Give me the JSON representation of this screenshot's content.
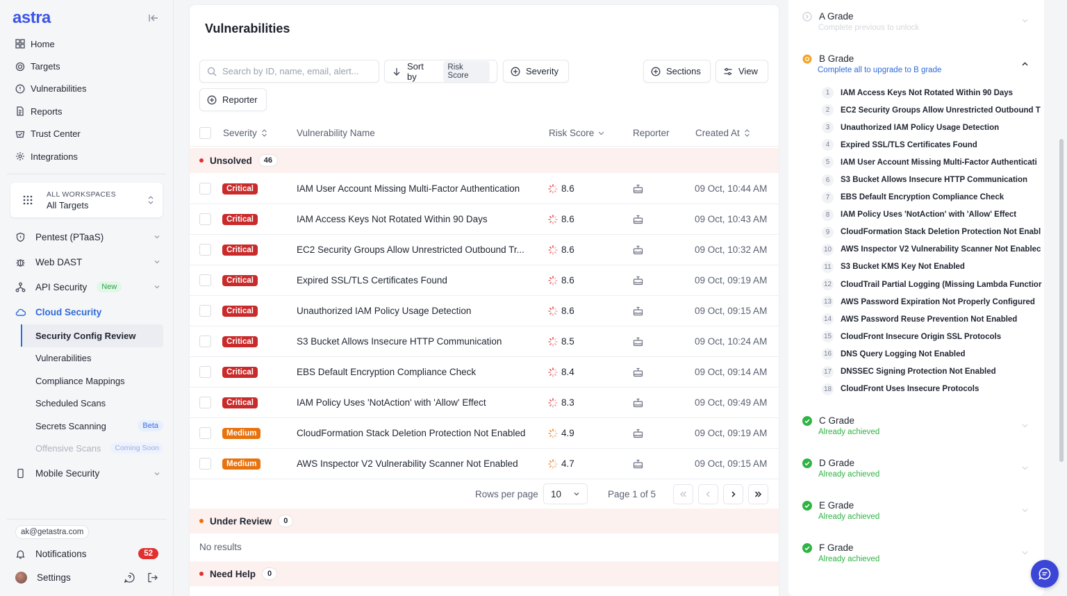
{
  "app": {
    "logo": "astra"
  },
  "nav": [
    {
      "label": "Home",
      "icon": "grid-icon"
    },
    {
      "label": "Targets",
      "icon": "target-icon"
    },
    {
      "label": "Vulnerabilities",
      "icon": "alert-circle-icon"
    },
    {
      "label": "Reports",
      "icon": "document-icon"
    },
    {
      "label": "Trust Center",
      "icon": "shield-check-icon"
    },
    {
      "label": "Integrations",
      "icon": "integrations-icon"
    }
  ],
  "workspace": {
    "label": "ALL WORKSPACES",
    "value": "All Targets"
  },
  "groups": {
    "pentest": "Pentest (PTaaS)",
    "dast": "Web DAST",
    "api": "API Security",
    "api_badge": "New",
    "cloud": "Cloud Security",
    "mobile": "Mobile Security"
  },
  "cloud_sub": {
    "config": "Security Config Review",
    "vulns": "Vulnerabilities",
    "compliance": "Compliance Mappings",
    "scheduled": "Scheduled Scans",
    "secrets": "Secrets Scanning",
    "secrets_badge": "Beta",
    "offensive": "Offensive Scans",
    "offensive_badge": "Coming Soon"
  },
  "account": {
    "email": "ak@getastra.com",
    "notifications": "Notifications",
    "notif_count": "52",
    "settings": "Settings"
  },
  "main": {
    "title": "Vulnerabilities",
    "search_placeholder": "Search by ID, name, email, alert...",
    "sort_label": "Sort by",
    "sort_value": "Risk Score",
    "severity": "Severity",
    "sections": "Sections",
    "view": "View",
    "reporter": "Reporter"
  },
  "columns": {
    "severity": "Severity",
    "name": "Vulnerability Name",
    "risk": "Risk Score",
    "reporter": "Reporter",
    "created": "Created At"
  },
  "sections": {
    "unsolved": {
      "label": "Unsolved",
      "count": "46"
    },
    "review": {
      "label": "Under Review",
      "count": "0"
    },
    "help": {
      "label": "Need Help",
      "count": "0"
    }
  },
  "rows": [
    {
      "sev": "Critical",
      "name": "IAM User Account Missing Multi-Factor Authentication",
      "risk": "8.6",
      "date": "09 Oct, 10:44 AM"
    },
    {
      "sev": "Critical",
      "name": "IAM Access Keys Not Rotated Within 90 Days",
      "risk": "8.6",
      "date": "09 Oct, 10:43 AM"
    },
    {
      "sev": "Critical",
      "name": "EC2 Security Groups Allow Unrestricted Outbound Tr...",
      "risk": "8.6",
      "date": "09 Oct, 10:32 AM"
    },
    {
      "sev": "Critical",
      "name": "Expired SSL/TLS Certificates Found",
      "risk": "8.6",
      "date": "09 Oct, 09:19 AM"
    },
    {
      "sev": "Critical",
      "name": "Unauthorized IAM Policy Usage Detection",
      "risk": "8.6",
      "date": "09 Oct, 09:15 AM"
    },
    {
      "sev": "Critical",
      "name": "S3 Bucket Allows Insecure HTTP Communication",
      "risk": "8.5",
      "date": "09 Oct, 10:24 AM"
    },
    {
      "sev": "Critical",
      "name": "EBS Default Encryption Compliance Check",
      "risk": "8.4",
      "date": "09 Oct, 09:14 AM"
    },
    {
      "sev": "Critical",
      "name": "IAM Policy Uses 'NotAction' with 'Allow' Effect",
      "risk": "8.3",
      "date": "09 Oct, 09:49 AM"
    },
    {
      "sev": "Medium",
      "name": "CloudFormation Stack Deletion Protection Not Enabled",
      "risk": "4.9",
      "date": "09 Oct, 09:19 AM"
    },
    {
      "sev": "Medium",
      "name": "AWS Inspector V2 Vulnerability Scanner Not Enabled",
      "risk": "4.7",
      "date": "09 Oct, 09:15 AM"
    }
  ],
  "pager": {
    "rows_label": "Rows per page",
    "rows_value": "10",
    "page_info": "Page 1 of 5"
  },
  "no_results": "No results",
  "grades": {
    "a": {
      "title": "A Grade",
      "sub": "Complete previous to unlock"
    },
    "b": {
      "title": "B Grade",
      "sub": "Complete all to upgrade to B grade"
    },
    "c": {
      "title": "C Grade",
      "sub": "Already achieved"
    },
    "d": {
      "title": "D Grade",
      "sub": "Already achieved"
    },
    "e": {
      "title": "E Grade",
      "sub": "Already achieved"
    },
    "f": {
      "title": "F Grade",
      "sub": "Already achieved"
    }
  },
  "checklist": [
    "IAM Access Keys Not Rotated Within 90 Days",
    "EC2 Security Groups Allow Unrestricted Outbound T",
    "Unauthorized IAM Policy Usage Detection",
    "Expired SSL/TLS Certificates Found",
    "IAM User Account Missing Multi-Factor Authenticati",
    "S3 Bucket Allows Insecure HTTP Communication",
    "EBS Default Encryption Compliance Check",
    "IAM Policy Uses 'NotAction' with 'Allow' Effect",
    "CloudFormation Stack Deletion Protection Not Enabl",
    "AWS Inspector V2 Vulnerability Scanner Not Enablec",
    "S3 Bucket KMS Key Not Enabled",
    "CloudTrail Partial Logging (Missing Lambda Functior",
    "AWS Password Expiration Not Properly Configured",
    "AWS Password Reuse Prevention Not Enabled",
    "CloudFront Insecure Origin SSL Protocols",
    "DNS Query Logging Not Enabled",
    "DNSSEC Signing Protection Not Enabled",
    "CloudFront Uses Insecure Protocols"
  ],
  "colors": {
    "accent": "#2f6bd8",
    "critical": "#c92a2a",
    "medium": "#e8720c",
    "success": "#2fb344"
  }
}
